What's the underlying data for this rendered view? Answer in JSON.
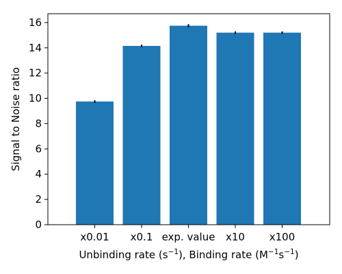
{
  "chart_data": {
    "type": "bar",
    "categories": [
      "x0.01",
      "x0.1",
      "exp. value",
      "x10",
      "x100"
    ],
    "values": [
      9.75,
      14.15,
      15.75,
      15.2,
      15.2
    ],
    "errors": [
      0.1,
      0.1,
      0.12,
      0.1,
      0.1
    ],
    "bar_color": "#1f77b4",
    "error_color": "#000000",
    "ylim": [
      0,
      16.7
    ],
    "yticks": [
      0,
      2,
      4,
      6,
      8,
      10,
      12,
      14,
      16
    ],
    "ylabel": "Signal to Noise ratio",
    "xlabel": {
      "part1": "Unbinding rate (s",
      "sup1": "−1",
      "part2": "), Binding rate (M",
      "sup2": "−1",
      "part3": "s",
      "sup3": "−1",
      "part4": ")"
    },
    "grid": false
  }
}
